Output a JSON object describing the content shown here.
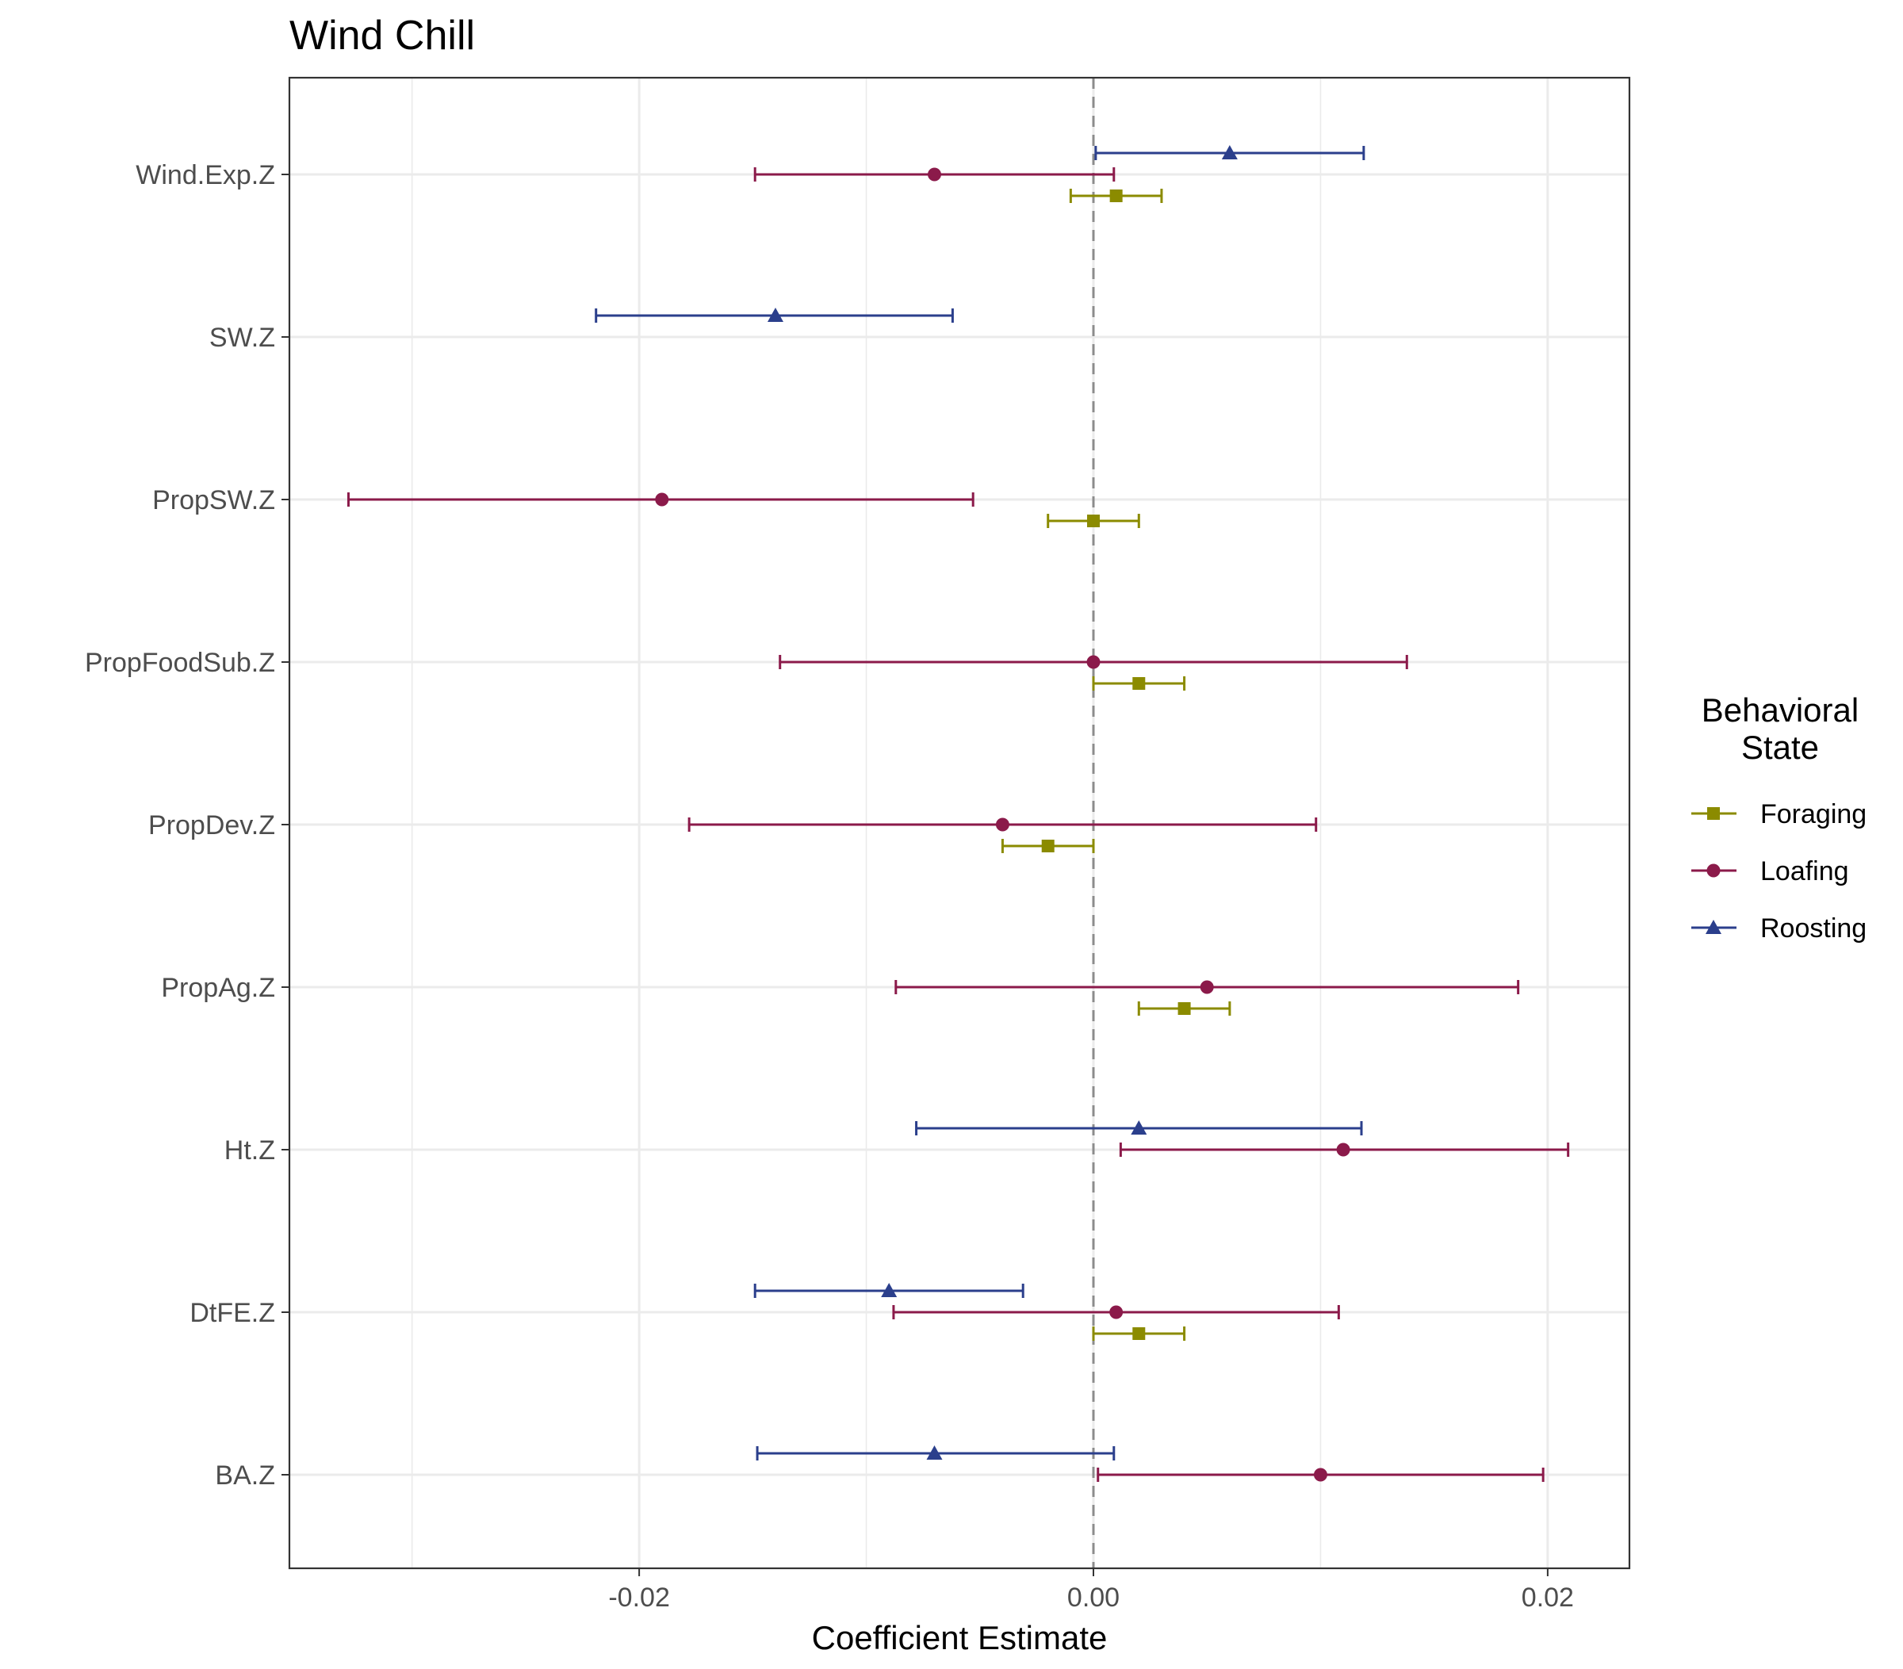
{
  "chart_data": {
    "type": "scatter",
    "subtype": "coefficient-plot",
    "title": "Wind Chill",
    "xlabel": "Coefficient Estimate",
    "ylabel": "",
    "xlim": [
      -0.0354,
      0.0236
    ],
    "x_ticks": [
      -0.02,
      0.0,
      0.02
    ],
    "x_tick_labels": [
      "-0.02",
      "0.00",
      "0.02"
    ],
    "x_minor_ticks": [
      -0.03,
      -0.01,
      0.01
    ],
    "categories": [
      "Wind.Exp.Z",
      "SW.Z",
      "PropSW.Z",
      "PropFoodSub.Z",
      "PropDev.Z",
      "PropAg.Z",
      "Ht.Z",
      "DtFE.Z",
      "BA.Z"
    ],
    "reference_line": {
      "x": 0,
      "style": "dashed"
    },
    "grid": true,
    "legend": {
      "title_lines": [
        "Behavioral",
        "State"
      ],
      "placement": "right"
    },
    "series": [
      {
        "name": "Foraging",
        "color": "#8b8b00",
        "marker": "square",
        "dodge": -1,
        "points": [
          {
            "category": "Wind.Exp.Z",
            "estimate": 0.001,
            "lower": -0.001,
            "upper": 0.003
          },
          {
            "category": "PropSW.Z",
            "estimate": 0.0,
            "lower": -0.002,
            "upper": 0.002
          },
          {
            "category": "PropFoodSub.Z",
            "estimate": 0.002,
            "lower": 0.0,
            "upper": 0.004
          },
          {
            "category": "PropDev.Z",
            "estimate": -0.002,
            "lower": -0.004,
            "upper": 0.0
          },
          {
            "category": "PropAg.Z",
            "estimate": 0.004,
            "lower": 0.002,
            "upper": 0.006
          },
          {
            "category": "DtFE.Z",
            "estimate": 0.002,
            "lower": 0.0,
            "upper": 0.004
          }
        ]
      },
      {
        "name": "Loafing",
        "color": "#8b1a4a",
        "marker": "circle",
        "dodge": 0,
        "points": [
          {
            "category": "Wind.Exp.Z",
            "estimate": -0.007,
            "lower": -0.0149,
            "upper": 0.0009
          },
          {
            "category": "PropSW.Z",
            "estimate": -0.019,
            "lower": -0.0328,
            "upper": -0.0053
          },
          {
            "category": "PropFoodSub.Z",
            "estimate": 0.0,
            "lower": -0.0138,
            "upper": 0.0138
          },
          {
            "category": "PropDev.Z",
            "estimate": -0.004,
            "lower": -0.0178,
            "upper": 0.0098
          },
          {
            "category": "PropAg.Z",
            "estimate": 0.005,
            "lower": -0.0087,
            "upper": 0.0187
          },
          {
            "category": "Ht.Z",
            "estimate": 0.011,
            "lower": 0.0012,
            "upper": 0.0209
          },
          {
            "category": "DtFE.Z",
            "estimate": 0.001,
            "lower": -0.0088,
            "upper": 0.0108
          },
          {
            "category": "BA.Z",
            "estimate": 0.01,
            "lower": 0.0002,
            "upper": 0.0198
          }
        ]
      },
      {
        "name": "Roosting",
        "color": "#2b3f8c",
        "marker": "triangle",
        "dodge": 1,
        "points": [
          {
            "category": "Wind.Exp.Z",
            "estimate": 0.006,
            "lower": 0.0001,
            "upper": 0.0119
          },
          {
            "category": "SW.Z",
            "estimate": -0.014,
            "lower": -0.0219,
            "upper": -0.0062
          },
          {
            "category": "Ht.Z",
            "estimate": 0.002,
            "lower": -0.0078,
            "upper": 0.0118
          },
          {
            "category": "DtFE.Z",
            "estimate": -0.009,
            "lower": -0.0149,
            "upper": -0.0031
          },
          {
            "category": "BA.Z",
            "estimate": -0.007,
            "lower": -0.0148,
            "upper": 0.0009
          }
        ]
      }
    ]
  }
}
